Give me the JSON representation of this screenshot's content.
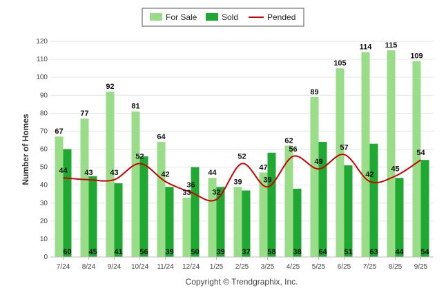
{
  "chart_data": {
    "type": "bar",
    "title": "",
    "xlabel": "",
    "ylabel": "Number of Homes",
    "ylim": [
      0,
      120
    ],
    "ytick_step": 10,
    "categories": [
      "7/24",
      "8/24",
      "9/24",
      "10/24",
      "11/24",
      "12/24",
      "1/25",
      "2/25",
      "3/25",
      "4/25",
      "5/25",
      "6/25",
      "7/25",
      "8/25",
      "9/25"
    ],
    "series": [
      {
        "name": "For Sale",
        "kind": "bar",
        "color": "#99dd88",
        "values": [
          67,
          77,
          92,
          81,
          64,
          33,
          44,
          39,
          47,
          62,
          89,
          105,
          114,
          115,
          109
        ]
      },
      {
        "name": "Sold",
        "kind": "bar",
        "color": "#1fa832",
        "values": [
          60,
          45,
          41,
          56,
          39,
          50,
          39,
          37,
          58,
          38,
          64,
          51,
          63,
          44,
          54
        ]
      },
      {
        "name": "Pended",
        "kind": "line",
        "color": "#cc0000",
        "values": [
          44,
          43,
          43,
          52,
          42,
          36,
          32,
          52,
          39,
          56,
          49,
          57,
          42,
          45,
          54
        ]
      }
    ],
    "legend_position": "top-center",
    "grid": true,
    "footer": "Copyright © Trendgraphix, Inc."
  }
}
